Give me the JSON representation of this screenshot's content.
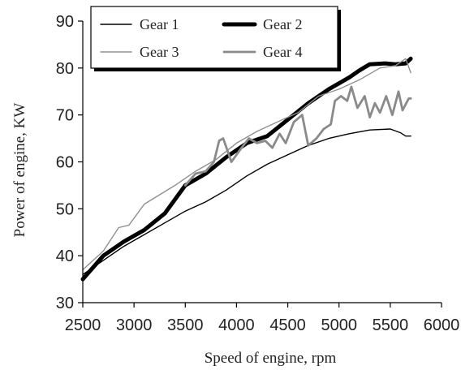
{
  "chart_data": {
    "type": "line",
    "title": "",
    "xlabel": "Speed of engine, rpm",
    "ylabel": "Power of engine, KW",
    "xlim": [
      2500,
      6000
    ],
    "ylim": [
      30,
      90
    ],
    "xticks": [
      2500,
      3000,
      3500,
      4000,
      4500,
      5000,
      5500,
      6000
    ],
    "yticks": [
      30,
      40,
      50,
      60,
      70,
      80,
      90
    ],
    "grid": false,
    "legend_position": "top-left",
    "series": [
      {
        "name": "Gear 1",
        "color": "#000000",
        "style": "thin",
        "points": [
          [
            2500,
            36
          ],
          [
            2700,
            39
          ],
          [
            2900,
            42
          ],
          [
            3100,
            44.5
          ],
          [
            3300,
            47
          ],
          [
            3500,
            49.5
          ],
          [
            3700,
            51.5
          ],
          [
            3900,
            54
          ],
          [
            4100,
            57
          ],
          [
            4300,
            59.5
          ],
          [
            4500,
            61.5
          ],
          [
            4700,
            63.5
          ],
          [
            4900,
            65
          ],
          [
            5100,
            66
          ],
          [
            5300,
            66.8
          ],
          [
            5500,
            67
          ],
          [
            5600,
            66.2
          ],
          [
            5650,
            65.5
          ],
          [
            5700,
            65.5
          ]
        ]
      },
      {
        "name": "Gear 2",
        "color": "#000000",
        "style": "thick",
        "points": [
          [
            2500,
            35
          ],
          [
            2700,
            40
          ],
          [
            2900,
            43
          ],
          [
            3100,
            45.5
          ],
          [
            3300,
            49
          ],
          [
            3500,
            55
          ],
          [
            3700,
            57.5
          ],
          [
            3900,
            61
          ],
          [
            4100,
            64
          ],
          [
            4300,
            65.5
          ],
          [
            4500,
            69
          ],
          [
            4700,
            72.5
          ],
          [
            4900,
            75.5
          ],
          [
            5100,
            78
          ],
          [
            5200,
            79.5
          ],
          [
            5300,
            80.8
          ],
          [
            5450,
            81
          ],
          [
            5550,
            80.8
          ],
          [
            5650,
            81
          ],
          [
            5700,
            82
          ]
        ]
      },
      {
        "name": "Gear 3",
        "color": "#909090",
        "style": "thin",
        "points": [
          [
            2500,
            37
          ],
          [
            2700,
            41
          ],
          [
            2850,
            46
          ],
          [
            2950,
            46.5
          ],
          [
            3100,
            51
          ],
          [
            3250,
            53
          ],
          [
            3400,
            55
          ],
          [
            3600,
            58
          ],
          [
            3800,
            60.5
          ],
          [
            4000,
            64
          ],
          [
            4200,
            66.5
          ],
          [
            4400,
            68.5
          ],
          [
            4600,
            70.5
          ],
          [
            4800,
            74
          ],
          [
            5000,
            75.5
          ],
          [
            5200,
            77.5
          ],
          [
            5400,
            80
          ],
          [
            5550,
            80.5
          ],
          [
            5650,
            82
          ],
          [
            5700,
            79
          ]
        ]
      },
      {
        "name": "Gear 4",
        "color": "#8a8a8a",
        "style": "medium",
        "points": [
          [
            3500,
            55
          ],
          [
            3600,
            57.5
          ],
          [
            3700,
            58
          ],
          [
            3780,
            60
          ],
          [
            3830,
            64.5
          ],
          [
            3870,
            65
          ],
          [
            3950,
            60
          ],
          [
            4050,
            63
          ],
          [
            4120,
            65
          ],
          [
            4200,
            64
          ],
          [
            4280,
            64.5
          ],
          [
            4350,
            63
          ],
          [
            4420,
            66
          ],
          [
            4480,
            64
          ],
          [
            4560,
            68.5
          ],
          [
            4640,
            70
          ],
          [
            4700,
            63.5
          ],
          [
            4780,
            65
          ],
          [
            4850,
            67
          ],
          [
            4920,
            68
          ],
          [
            4960,
            73
          ],
          [
            5020,
            74
          ],
          [
            5080,
            73
          ],
          [
            5120,
            76
          ],
          [
            5180,
            71.5
          ],
          [
            5250,
            74
          ],
          [
            5300,
            69.5
          ],
          [
            5350,
            72.5
          ],
          [
            5400,
            70.5
          ],
          [
            5460,
            74
          ],
          [
            5520,
            70
          ],
          [
            5580,
            75
          ],
          [
            5620,
            71
          ],
          [
            5680,
            73.5
          ],
          [
            5700,
            73.5
          ]
        ]
      }
    ]
  }
}
